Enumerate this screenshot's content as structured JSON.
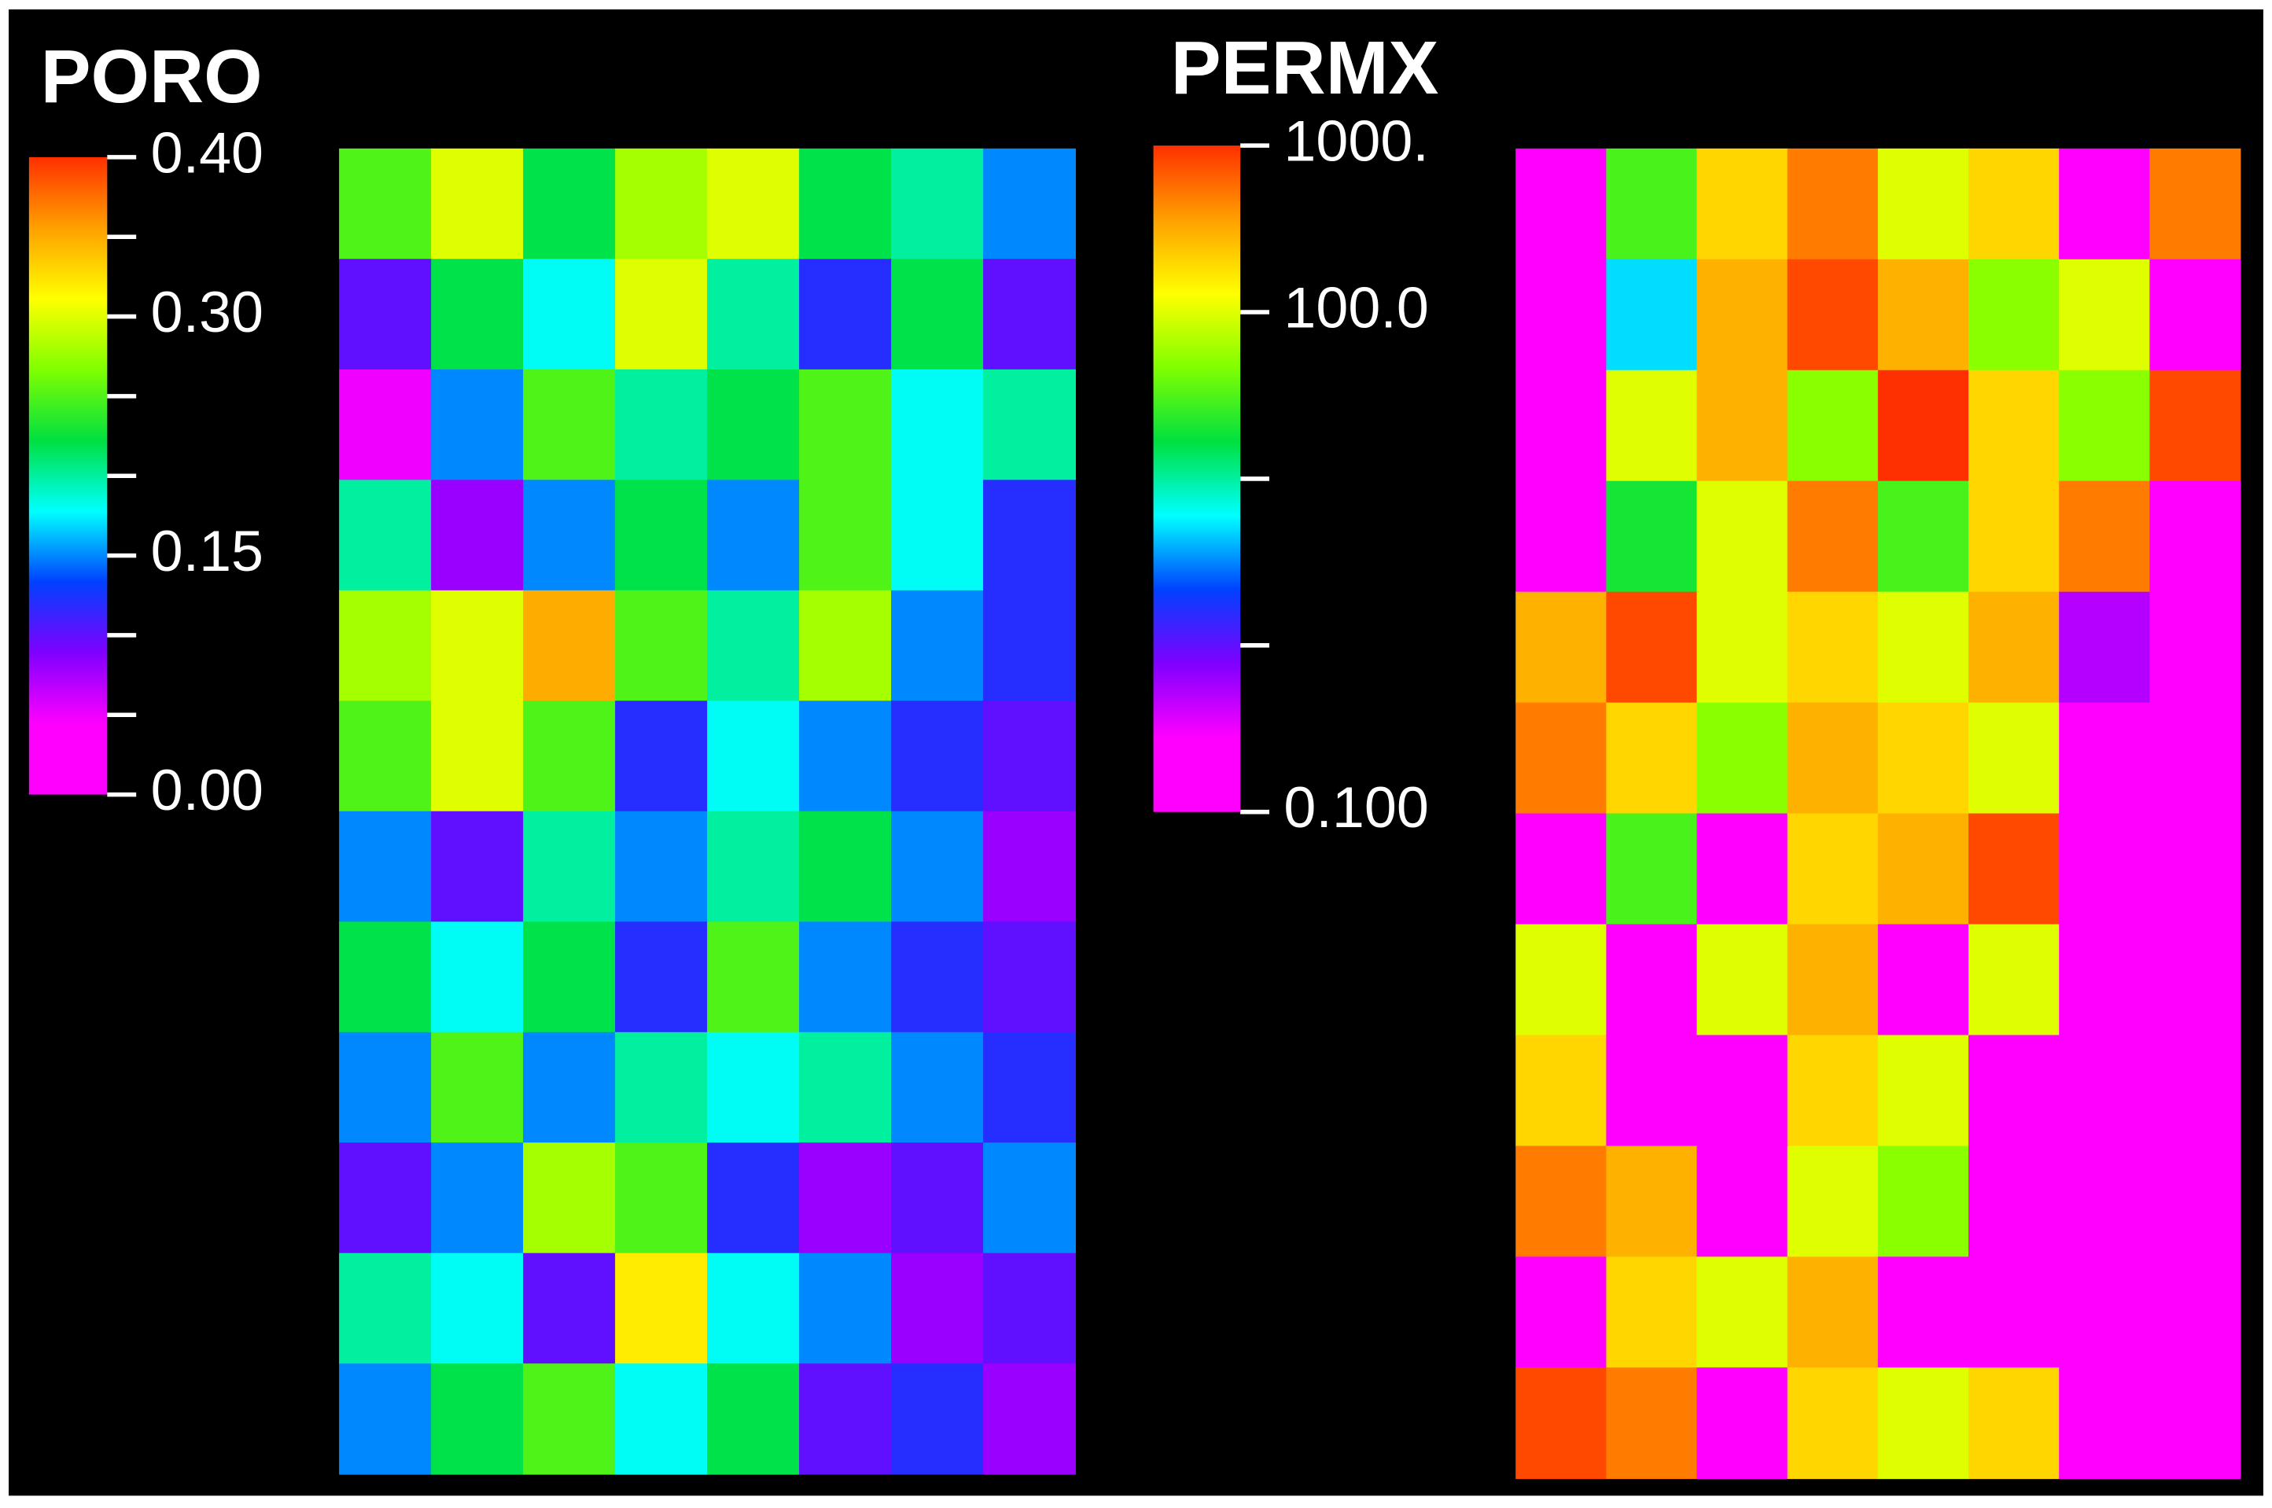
{
  "chart_data": [
    {
      "type": "heatmap",
      "title": "PORO",
      "zlim": [
        0,
        0.4
      ],
      "zlog": false,
      "zticks": [
        {
          "value": 0,
          "label": "0.00"
        },
        {
          "value": 0.15,
          "label": "0.15"
        },
        {
          "value": 0.3,
          "label": "0.30"
        },
        {
          "value": 0.4,
          "label": "0.40"
        }
      ],
      "zminor_ticks": [
        0.05,
        0.1,
        0.2,
        0.25,
        0.35
      ],
      "colormap": [
        "#ff00ff",
        "#ff00ff",
        "#8000ff",
        "#0040ff",
        "#00ffff",
        "#00e040",
        "#80ff00",
        "#ffff00",
        "#ffa000",
        "#ff3000"
      ],
      "values": [
        [
          0.25,
          0.3,
          0.22,
          0.28,
          0.3,
          0.22,
          0.2,
          0.15
        ],
        [
          0.1,
          0.22,
          0.18,
          0.3,
          0.2,
          0.12,
          0.22,
          0.1
        ],
        [
          0.05,
          0.15,
          0.25,
          0.2,
          0.22,
          0.25,
          0.18,
          0.2
        ],
        [
          0.2,
          0.08,
          0.15,
          0.22,
          0.15,
          0.25,
          0.18,
          0.12
        ],
        [
          0.28,
          0.3,
          0.35,
          0.25,
          0.2,
          0.28,
          0.15,
          0.12
        ],
        [
          0.25,
          0.3,
          0.25,
          0.12,
          0.18,
          0.15,
          0.12,
          0.1
        ],
        [
          0.15,
          0.1,
          0.2,
          0.15,
          0.2,
          0.22,
          0.15,
          0.08
        ],
        [
          0.22,
          0.18,
          0.22,
          0.12,
          0.25,
          0.15,
          0.12,
          0.1
        ],
        [
          0.15,
          0.25,
          0.15,
          0.2,
          0.18,
          0.2,
          0.15,
          0.12
        ],
        [
          0.1,
          0.15,
          0.28,
          0.25,
          0.12,
          0.08,
          0.1,
          0.15
        ],
        [
          0.2,
          0.18,
          0.1,
          0.32,
          0.18,
          0.15,
          0.08,
          0.1
        ],
        [
          0.15,
          0.22,
          0.25,
          0.18,
          0.22,
          0.1,
          0.12,
          0.08
        ]
      ]
    },
    {
      "type": "heatmap",
      "title": "PERMX",
      "zlim": [
        0.1,
        1000
      ],
      "zlog": true,
      "zticks": [
        {
          "value": 0.1,
          "label": "0.100"
        },
        {
          "value": 100,
          "label": "100.0"
        },
        {
          "value": 1000,
          "label": "1000."
        }
      ],
      "zminor_ticks": [
        1,
        10
      ],
      "colormap": [
        "#ff00ff",
        "#ff00ff",
        "#8000ff",
        "#0040ff",
        "#00ffff",
        "#00e040",
        "#80ff00",
        "#ffff00",
        "#ffa000",
        "#ff3000"
      ],
      "values": [
        [
          0.1,
          30,
          200,
          500,
          100,
          200,
          0.1,
          500
        ],
        [
          0.1,
          5,
          300,
          800,
          300,
          50,
          100,
          0.1
        ],
        [
          0.1,
          100,
          300,
          50,
          1000,
          200,
          50,
          800
        ],
        [
          0.1,
          20,
          100,
          500,
          30,
          200,
          500,
          0.1
        ],
        [
          300,
          800,
          100,
          200,
          100,
          300,
          0.5,
          0.1
        ],
        [
          500,
          200,
          50,
          300,
          200,
          100,
          0.1,
          0.1
        ],
        [
          0.1,
          30,
          0.1,
          200,
          300,
          800,
          0.1,
          0.2
        ],
        [
          100,
          0.1,
          100,
          300,
          0.1,
          100,
          0.1,
          0.1
        ],
        [
          200,
          0.1,
          0.1,
          200,
          100,
          0.1,
          0.1,
          0.1
        ],
        [
          500,
          300,
          0.1,
          100,
          50,
          0.1,
          0.1,
          0.1
        ],
        [
          0.1,
          200,
          100,
          300,
          0.1,
          0.1,
          0.1,
          0.1
        ],
        [
          800,
          500,
          0.1,
          200,
          100,
          200,
          0.1,
          0.1
        ]
      ]
    }
  ]
}
